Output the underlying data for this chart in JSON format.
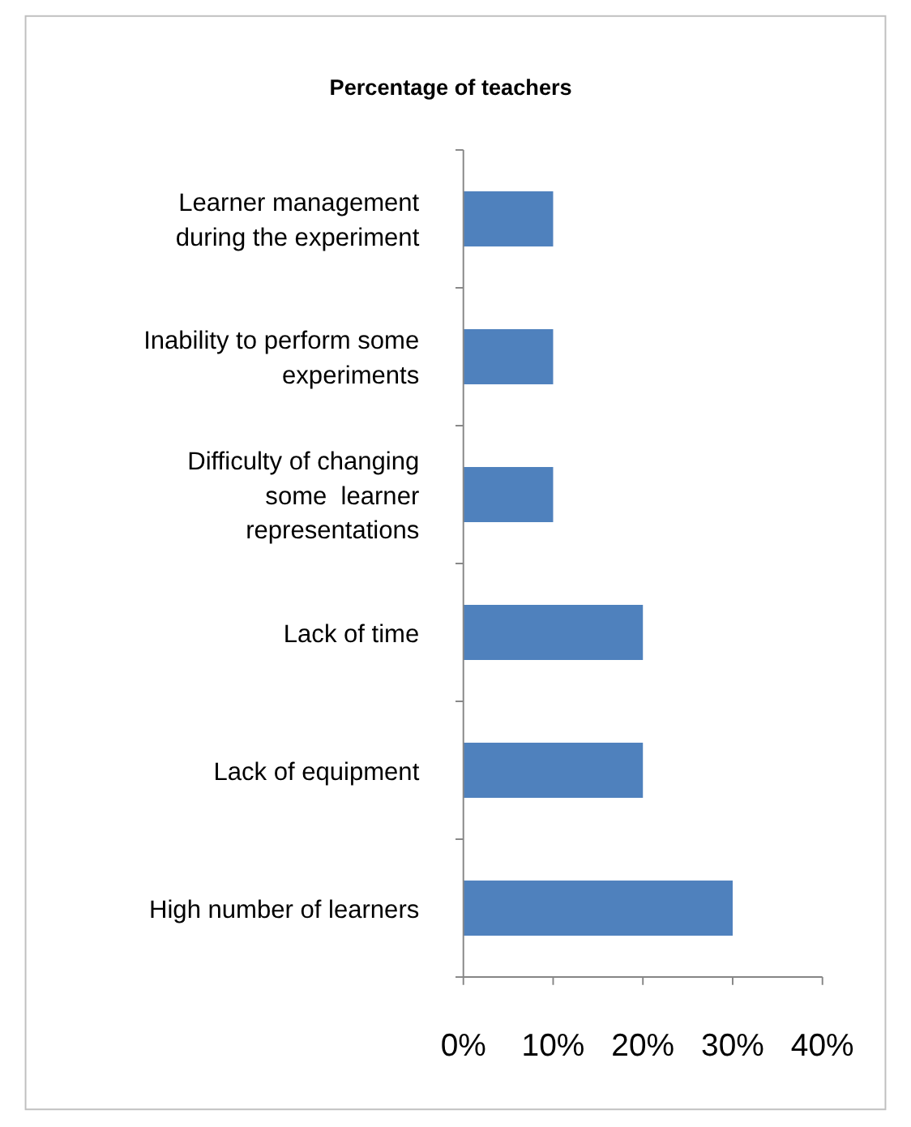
{
  "chart_data": {
    "type": "bar",
    "orientation": "horizontal",
    "title": "Percentage of teachers",
    "categories": [
      "Learner management\nduring the experiment",
      "Inability to perform some\nexperiments",
      "Difficulty of changing\nsome  learner\nrepresentations",
      "Lack of time",
      "Lack of equipment",
      "High number of learners"
    ],
    "values": [
      10,
      10,
      10,
      20,
      20,
      30
    ],
    "color": "#4f81bd",
    "xlim": [
      0,
      40
    ],
    "xticks": [
      {
        "value": 0,
        "label": "0%"
      },
      {
        "value": 10,
        "label": "10%"
      },
      {
        "value": 20,
        "label": "20%"
      },
      {
        "value": 30,
        "label": "30%"
      },
      {
        "value": 40,
        "label": "40%"
      }
    ],
    "grid": false
  }
}
